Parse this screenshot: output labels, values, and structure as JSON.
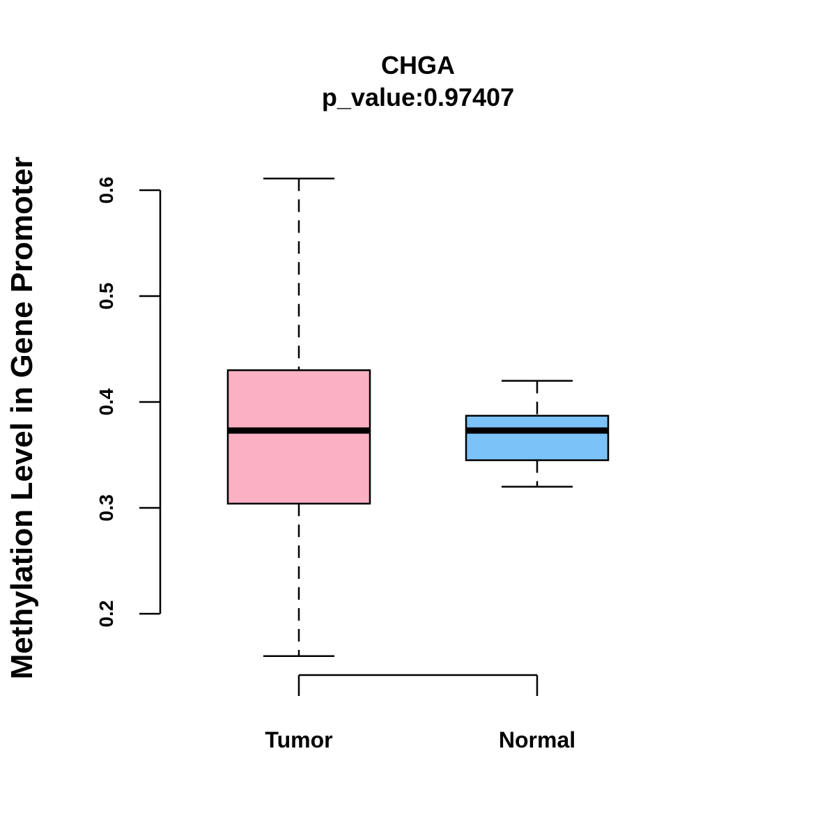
{
  "chart_data": {
    "type": "box",
    "title": "CHGA",
    "subtitle": "p_value:0.97407",
    "xlabel": "",
    "ylabel": "Methylation Level in Gene Promoter",
    "ylim": [
      0.2,
      0.6
    ],
    "yticks": [
      "0.2",
      "0.3",
      "0.4",
      "0.5",
      "0.6"
    ],
    "categories": [
      "Tumor",
      "Normal"
    ],
    "series": [
      {
        "name": "Tumor",
        "min": 0.16,
        "q1": 0.304,
        "median": 0.373,
        "q3": 0.43,
        "max": 0.611,
        "color": "#FBB0C3"
      },
      {
        "name": "Normal",
        "min": 0.32,
        "q1": 0.345,
        "median": 0.373,
        "q3": 0.387,
        "max": 0.42,
        "color": "#7BC2F8"
      }
    ],
    "grid": false
  }
}
